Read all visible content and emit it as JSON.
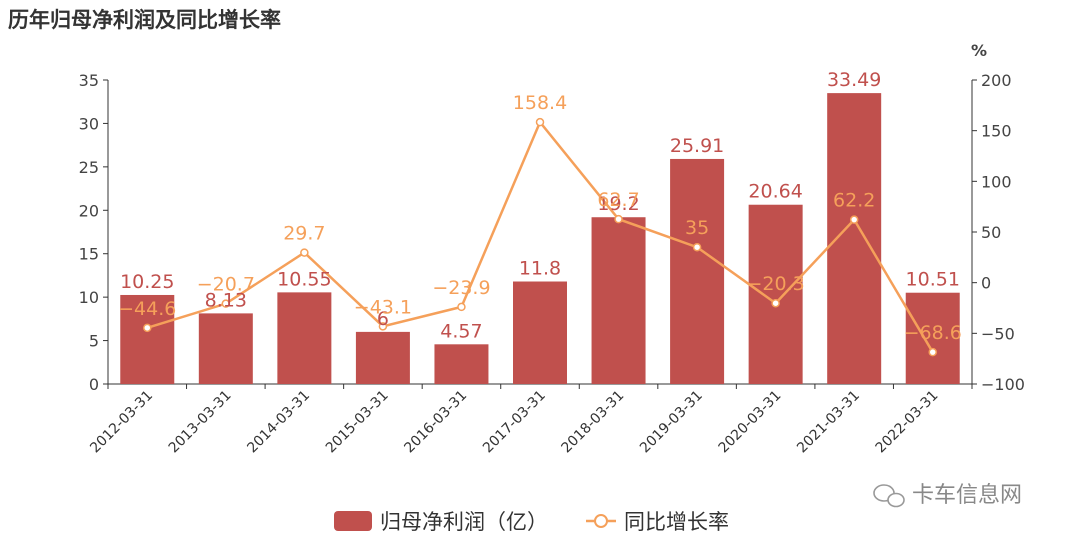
{
  "title": "历年归母净利润及同比增长率",
  "watermark": "卡车信息网",
  "colors": {
    "bar": "#c0504d",
    "line": "#f5a05a",
    "axis": "#333333"
  },
  "chart_data": {
    "type": "bar",
    "categories": [
      "2012-03-31",
      "2013-03-31",
      "2014-03-31",
      "2015-03-31",
      "2016-03-31",
      "2017-03-31",
      "2018-03-31",
      "2019-03-31",
      "2020-03-31",
      "2021-03-31",
      "2022-03-31"
    ],
    "series": [
      {
        "name": "归母净利润（亿）",
        "type": "bar",
        "axis": "left",
        "values": [
          10.25,
          8.13,
          10.55,
          6,
          4.57,
          11.8,
          19.2,
          25.91,
          20.64,
          33.49,
          10.51
        ],
        "labels": [
          "10.25",
          "8.13",
          "10.55",
          "6",
          "4.57",
          "11.8",
          "19.2",
          "25.91",
          "20.64",
          "33.49",
          "10.51"
        ]
      },
      {
        "name": "同比增长率",
        "type": "line",
        "axis": "right",
        "values": [
          -44.6,
          -20.7,
          29.7,
          -43.1,
          -23.9,
          158.4,
          62.7,
          35,
          -20.3,
          62.2,
          -68.6
        ],
        "labels": [
          "−44.6",
          "−20.7",
          "29.7",
          "−43.1",
          "−23.9",
          "158.4",
          "62.7",
          "35",
          "−20.3",
          "62.2",
          "−68.6"
        ]
      }
    ],
    "y_left": {
      "min": 0,
      "max": 35,
      "ticks": [
        "0",
        "5",
        "10",
        "15",
        "20",
        "25",
        "30",
        "35"
      ]
    },
    "y_right": {
      "min": -100,
      "max": 200,
      "ticks": [
        "−100",
        "−50",
        "0",
        "50",
        "100",
        "150",
        "200"
      ],
      "unit": "%"
    },
    "legend": [
      "归母净利润（亿）",
      "同比增长率"
    ],
    "legend_position": "bottom",
    "grid": false
  }
}
